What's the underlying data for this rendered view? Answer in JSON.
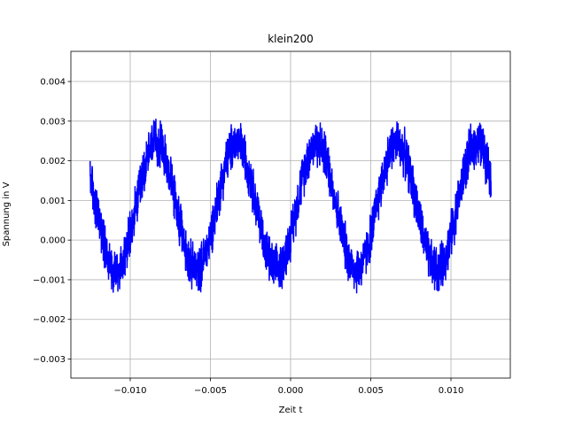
{
  "chart_data": {
    "type": "line",
    "title": "klein200",
    "xlabel": "Zeit t",
    "ylabel": "Spannung in V",
    "xlim": [
      -0.0137,
      0.0137
    ],
    "ylim": [
      -0.00348,
      0.00476
    ],
    "xticks": [
      -0.01,
      -0.005,
      0.0,
      0.005,
      0.01
    ],
    "xtick_labels": [
      "−0.010",
      "−0.005",
      "0.000",
      "0.005",
      "0.010"
    ],
    "yticks": [
      -0.003,
      -0.002,
      -0.001,
      0.0,
      0.001,
      0.002,
      0.003,
      0.004
    ],
    "ytick_labels": [
      "−0.003",
      "−0.002",
      "−0.001",
      "0.000",
      "0.001",
      "0.002",
      "0.003",
      "0.004"
    ],
    "grid": true,
    "series": [
      {
        "color": "#0000ff",
        "signal": {
          "x_start": -0.0125,
          "x_end": 0.0125,
          "frequency_hz": 200,
          "offset_v": 0.00085,
          "amplitude_v": 0.0032,
          "phase_rad": -0.47,
          "noise_v": 0.0007
        }
      }
    ]
  }
}
